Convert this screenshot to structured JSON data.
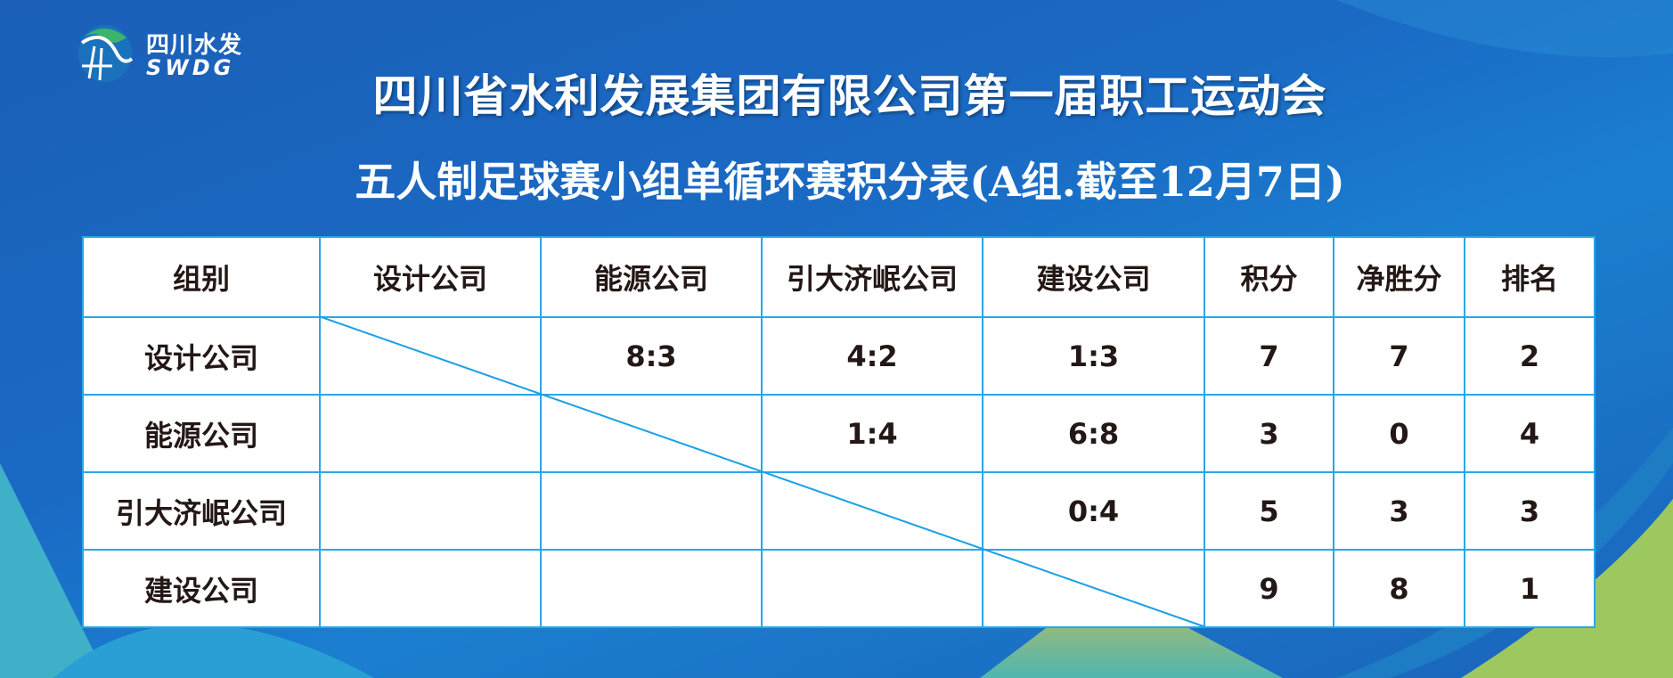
{
  "logo": {
    "cn": "四川水发",
    "en": "SWDG"
  },
  "title": "四川省水利发展集团有限公司第一届职工运动会",
  "subtitle": "五人制足球赛小组单循环赛积分表(A组.截至12月7日)",
  "table": {
    "headers": [
      "组别",
      "设计公司",
      "能源公司",
      "引大济岷公司",
      "建设公司",
      "积分",
      "净胜分",
      "排名"
    ],
    "rows": [
      [
        "设计公司",
        "",
        "8:3",
        "4:2",
        "1:3",
        "7",
        "7",
        "2"
      ],
      [
        "能源公司",
        "",
        "",
        "1:4",
        "6:8",
        "3",
        "0",
        "4"
      ],
      [
        "引大济岷公司",
        "",
        "",
        "",
        "0:4",
        "5",
        "3",
        "3"
      ],
      [
        "建设公司",
        "",
        "",
        "",
        "",
        "9",
        "8",
        "1"
      ]
    ]
  },
  "colors": {
    "background": "#1b64be",
    "grid": "#2aa6e8",
    "text": "#231815"
  }
}
